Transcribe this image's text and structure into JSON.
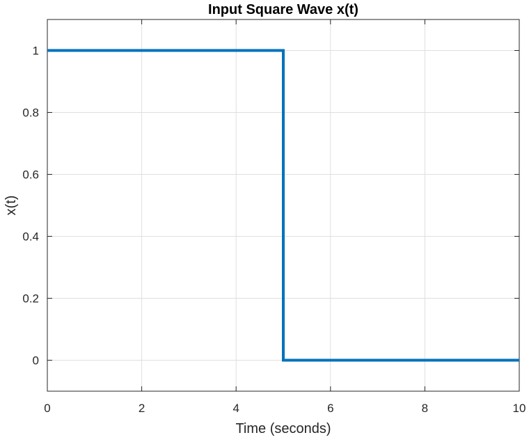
{
  "chart_data": {
    "type": "line",
    "title": "Input Square Wave x(t)",
    "xlabel": "Time (seconds)",
    "ylabel": "x(t)",
    "xlim": [
      0,
      10
    ],
    "ylim": [
      -0.1,
      1.1
    ],
    "xticks": [
      0,
      2,
      4,
      6,
      8,
      10
    ],
    "yticks": [
      0,
      0.2,
      0.4,
      0.6,
      0.8,
      1
    ],
    "grid": true,
    "series": [
      {
        "color": "#0072BD",
        "x": [
          0,
          5,
          5,
          10
        ],
        "y": [
          1,
          1,
          0,
          0
        ]
      }
    ]
  }
}
